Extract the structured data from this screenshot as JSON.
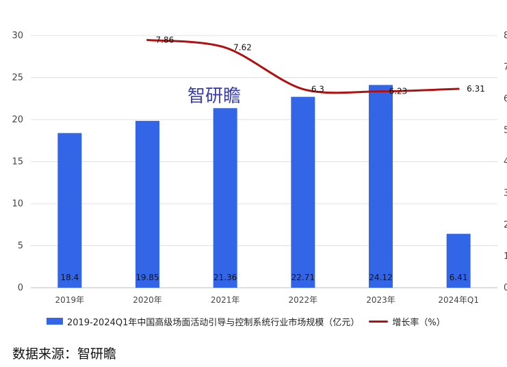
{
  "chart_data": {
    "type": "bar",
    "categories": [
      "2019年",
      "2020年",
      "2021年",
      "2022年",
      "2023年",
      "2024年Q1"
    ],
    "series": [
      {
        "name": "2019-2024Q1年中国高级场面活动引导与控制系统行业市场规模（亿元）",
        "type": "bar",
        "axis": "left",
        "values": [
          18.4,
          19.85,
          21.36,
          22.71,
          24.12,
          6.41
        ],
        "labels": [
          "18.4",
          "19.85",
          "21.36",
          "22.71",
          "24.12",
          "6.41"
        ],
        "color": "#3366e6"
      },
      {
        "name": "增长率（%）",
        "type": "line",
        "axis": "right",
        "values": [
          null,
          7.86,
          7.62,
          6.3,
          6.23,
          6.31
        ],
        "labels": [
          "",
          "7.86",
          "7.62",
          "6.3",
          "6.23",
          "6.31"
        ],
        "color": "#b01010"
      }
    ],
    "ylim": [
      0,
      30
    ],
    "yticks": [
      "0",
      "5",
      "10",
      "15",
      "20",
      "25",
      "30"
    ],
    "y2lim": [
      0,
      8
    ],
    "y2ticks": [
      "0",
      "1",
      "2",
      "3",
      "4",
      "5",
      "6",
      "7",
      "8"
    ],
    "grid": true,
    "legend": "bottom"
  },
  "watermark": "智研瞻",
  "source": "数据来源：智研瞻"
}
